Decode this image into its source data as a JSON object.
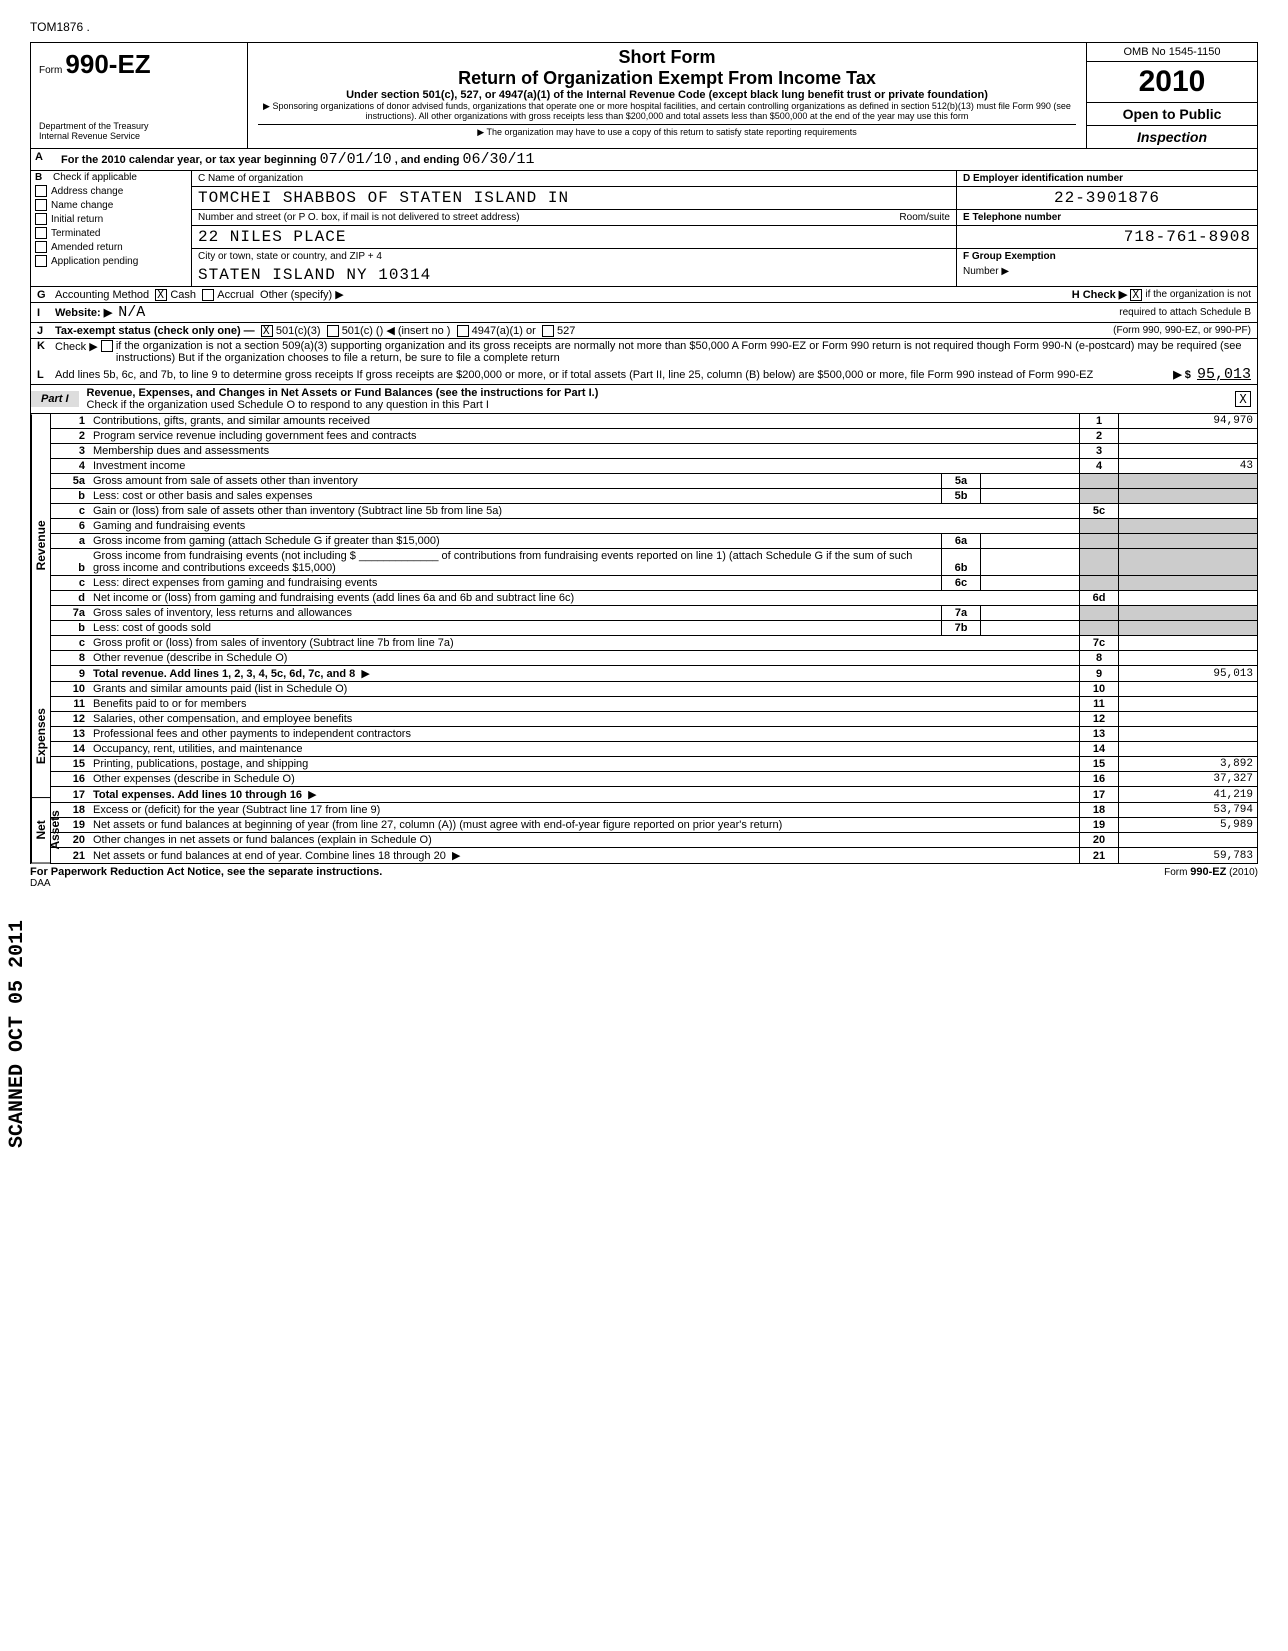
{
  "top_code": "TOM1876 .",
  "form": {
    "prefix": "Form",
    "number": "990-EZ",
    "dept1": "Department of the Treasury",
    "dept2": "Internal Revenue Service"
  },
  "header_mid": {
    "short": "Short Form",
    "title": "Return of Organization Exempt From Income Tax",
    "sub": "Under section 501(c), 527, or 4947(a)(1) of the Internal Revenue Code (except black lung benefit trust or private foundation)",
    "fine1": "▶ Sponsoring organizations of donor advised funds, organizations that operate one or more hospital facilities, and certain controlling organizations as defined in section 512(b)(13) must file Form 990 (see instructions). All other organizations with gross receipts less than $200,000 and total assets less than $500,000 at the end of the year may use this form",
    "fine2": "▶ The organization may have to use a copy of this return to satisfy state reporting requirements"
  },
  "header_right": {
    "omb": "OMB No 1545-1150",
    "year": "2010",
    "open": "Open to Public",
    "inspect": "Inspection"
  },
  "lineA": {
    "label": "A",
    "text": "For the 2010 calendar year, or tax year beginning",
    "begin": "07/01/10",
    "mid": ", and ending",
    "end": "06/30/11"
  },
  "checks": {
    "b": "B",
    "hdr": "Check if applicable",
    "items": [
      "Address change",
      "Name change",
      "Initial return",
      "Terminated",
      "Amended return",
      "Application pending"
    ]
  },
  "org": {
    "c_label": "C  Name of organization",
    "name": "TOMCHEI SHABBOS OF STATEN ISLAND IN",
    "addr_label": "Number and street (or P O. box, if mail is not delivered to street address)",
    "room": "Room/suite",
    "addr": "22 NILES PLACE",
    "city_label": "City or town, state or country, and ZIP + 4",
    "city": "STATEN ISLAND              NY  10314"
  },
  "right_info": {
    "d_label": "D  Employer identification number",
    "ein": "22-3901876",
    "e_label": "E  Telephone number",
    "phone": "718-761-8908",
    "f_label": "F  Group Exemption",
    "f_label2": "Number                  ▶"
  },
  "lineG": {
    "g": "G",
    "text": "Accounting Method",
    "cash": "Cash",
    "accrual": "Accrual",
    "other": "Other (specify) ▶",
    "h": "H   Check ▶",
    "h2": "if the organization is not",
    "h3": "required to attach Schedule B"
  },
  "lineI": {
    "i": "I",
    "text": "Website:   ▶",
    "val": "N/A"
  },
  "lineJ": {
    "j": "J",
    "text": "Tax-exempt status (check only one) —",
    "a": "501(c)(3)",
    "b": "501(c) (",
    "c": ") ◀ (insert no )",
    "d": "4947(a)(1) or",
    "e": "527",
    "f": "(Form 990, 990-EZ, or 990-PF)"
  },
  "lineK": {
    "k": "K",
    "text": "Check ▶",
    "rest": "if the organization is not a section 509(a)(3) supporting organization and its gross receipts are normally not more than $50,000  A Form 990-EZ or Form 990 return is not required though Form 990-N (e-postcard) may be required (see instructions)  But if the organization chooses to file a return, be sure to file a complete return"
  },
  "lineL": {
    "l": "L",
    "text": "Add lines 5b, 6c, and 7b, to line 9 to determine gross receipts  If gross receipts are $200,000 or more, or if total assets (Part II, line 25, column (B) below) are $500,000 or more, file Form 990 instead of Form 990-EZ",
    "arrow": "▶  $",
    "val": "95,013"
  },
  "part1": {
    "tab": "Part I",
    "title": "Revenue, Expenses, and Changes in Net Assets or Fund Balances (see the instructions for Part I.)",
    "check": "Check if the organization used Schedule O to respond to any question in this Part I"
  },
  "sides": {
    "rev": "Revenue",
    "exp": "Expenses",
    "na": "Net Assets",
    "scanned": "SCANNED OCT 05 2011"
  },
  "rows": [
    {
      "n": "1",
      "d": "Contributions, gifts, grants, and similar amounts received",
      "idx": "1",
      "v": "94,970"
    },
    {
      "n": "2",
      "d": "Program service revenue including government fees and contracts",
      "idx": "2",
      "v": ""
    },
    {
      "n": "3",
      "d": "Membership dues and assessments",
      "idx": "3",
      "v": ""
    },
    {
      "n": "4",
      "d": "Investment income",
      "idx": "4",
      "v": "43"
    },
    {
      "n": "5a",
      "d": "Gross amount from sale of assets other than inventory",
      "mini": "5a"
    },
    {
      "n": "b",
      "d": "Less: cost or other basis and sales expenses",
      "mini": "5b"
    },
    {
      "n": "c",
      "d": "Gain or (loss) from sale of assets other than inventory (Subtract line 5b from line 5a)",
      "idx": "5c",
      "v": ""
    },
    {
      "n": "6",
      "d": "Gaming and fundraising events"
    },
    {
      "n": "a",
      "d": "Gross income from gaming (attach Schedule G if greater than $15,000)",
      "mini": "6a"
    },
    {
      "n": "b",
      "d": "Gross income from fundraising events (not including   $ _____________ of contributions from fundraising events reported on line 1) (attach Schedule G if the sum of such gross income and contributions exceeds $15,000)",
      "mini": "6b"
    },
    {
      "n": "c",
      "d": "Less: direct expenses from gaming and fundraising events",
      "mini": "6c"
    },
    {
      "n": "d",
      "d": "Net income or (loss) from gaming and fundraising events (add lines 6a and 6b and subtract line 6c)",
      "idx": "6d",
      "v": ""
    },
    {
      "n": "7a",
      "d": "Gross sales of inventory, less returns and allowances",
      "mini": "7a"
    },
    {
      "n": "b",
      "d": "Less: cost of goods sold",
      "mini": "7b"
    },
    {
      "n": "c",
      "d": "Gross profit or (loss) from sales of inventory (Subtract line 7b from line 7a)",
      "idx": "7c",
      "v": ""
    },
    {
      "n": "8",
      "d": "Other revenue (describe in Schedule O)",
      "idx": "8",
      "v": ""
    },
    {
      "n": "9",
      "d": "Total revenue. Add lines 1, 2, 3, 4, 5c, 6d, 7c, and 8",
      "idx": "9",
      "v": "95,013",
      "bold": true,
      "arrow": true
    },
    {
      "n": "10",
      "d": "Grants and similar amounts paid (list in Schedule O)",
      "idx": "10",
      "v": ""
    },
    {
      "n": "11",
      "d": "Benefits paid to or for members",
      "idx": "11",
      "v": ""
    },
    {
      "n": "12",
      "d": "Salaries, other compensation, and employee benefits",
      "idx": "12",
      "v": ""
    },
    {
      "n": "13",
      "d": "Professional fees and other payments to independent contractors",
      "idx": "13",
      "v": ""
    },
    {
      "n": "14",
      "d": "Occupancy, rent, utilities, and maintenance",
      "idx": "14",
      "v": ""
    },
    {
      "n": "15",
      "d": "Printing, publications, postage, and shipping",
      "idx": "15",
      "v": "3,892"
    },
    {
      "n": "16",
      "d": "Other expenses (describe in Schedule O)",
      "idx": "16",
      "v": "37,327"
    },
    {
      "n": "17",
      "d": "Total expenses. Add lines 10 through 16",
      "idx": "17",
      "v": "41,219",
      "bold": true,
      "arrow": true
    },
    {
      "n": "18",
      "d": "Excess or (deficit) for the year (Subtract line 17 from line 9)",
      "idx": "18",
      "v": "53,794"
    },
    {
      "n": "19",
      "d": "Net assets or fund balances at beginning of year (from line 27, column (A)) (must agree with end-of-year figure reported on prior year's return)",
      "idx": "19",
      "v": "5,989"
    },
    {
      "n": "20",
      "d": "Other changes in net assets or fund balances (explain in Schedule O)",
      "idx": "20",
      "v": ""
    },
    {
      "n": "21",
      "d": "Net assets or fund balances at end of year. Combine lines 18 through 20",
      "idx": "21",
      "v": "59,783",
      "arrow": true
    }
  ],
  "footer": {
    "left": "For Paperwork Reduction Act Notice, see the separate instructions.",
    "daa": "DAA",
    "right": "Form 990-EZ (2010)"
  }
}
